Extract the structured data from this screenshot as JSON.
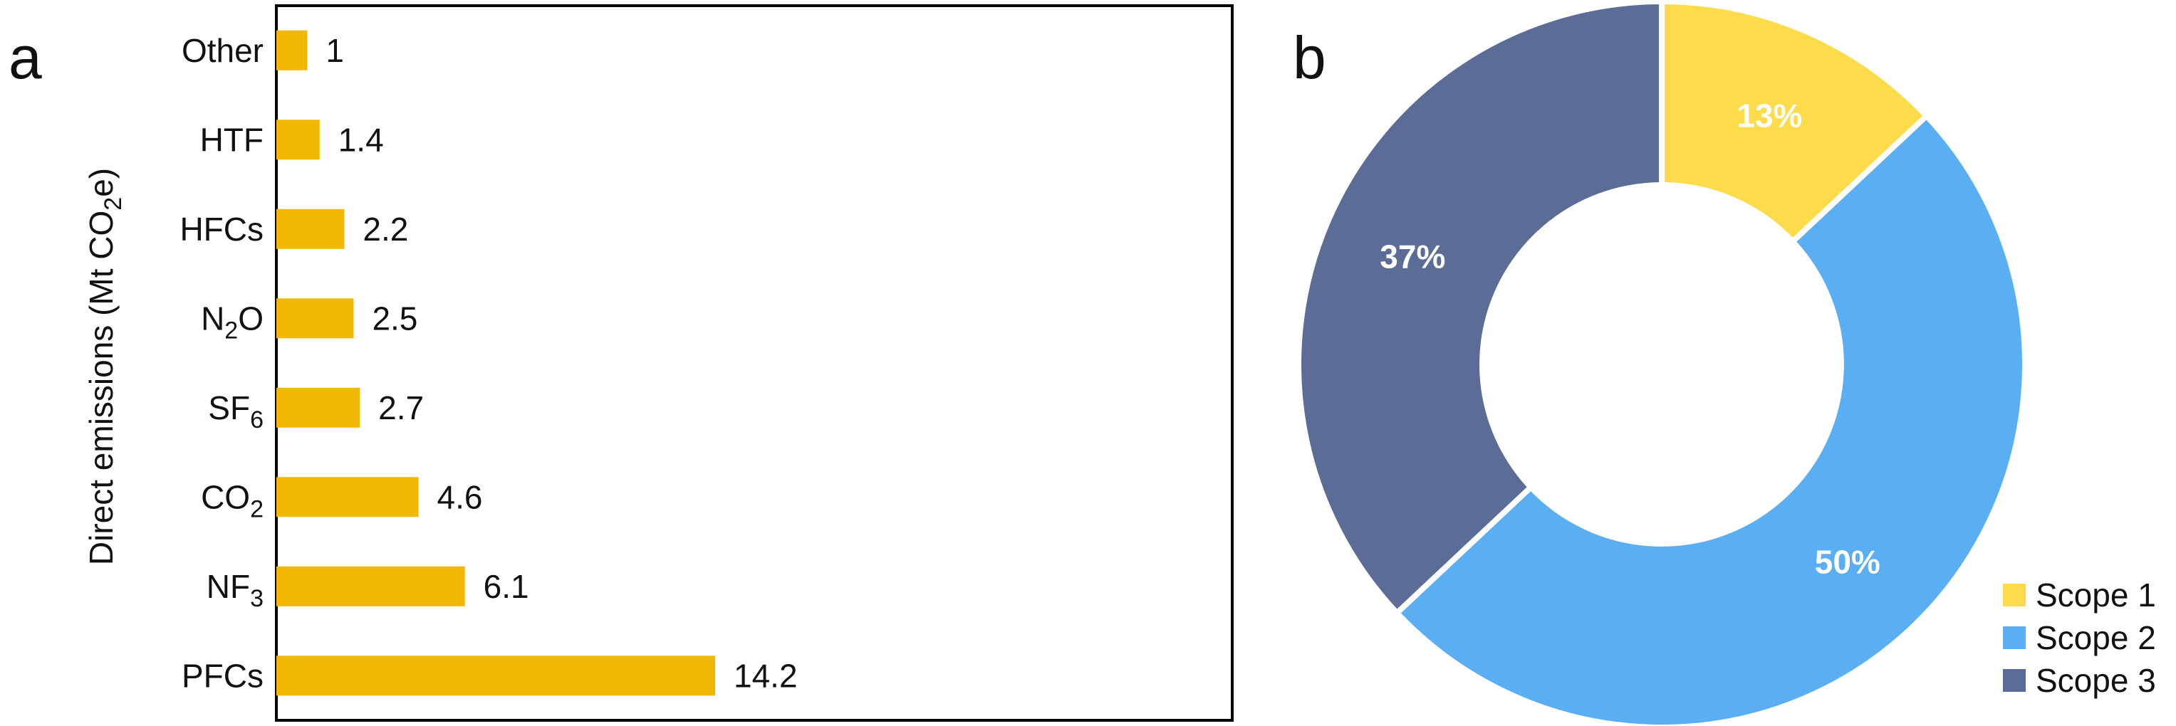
{
  "panel_a_label": "a",
  "panel_b_label": "b",
  "chart_data": [
    {
      "type": "bar",
      "orientation": "horizontal",
      "ylabel": "Direct emissions  (Mt CO2e)",
      "categories": [
        "Other",
        "HTF",
        "HFCs",
        "N2O",
        "SF6",
        "CO2",
        "NF3",
        "PFCs"
      ],
      "values": [
        1,
        1.4,
        2.2,
        2.5,
        2.7,
        4.6,
        6.1,
        14.2
      ],
      "value_labels": [
        "1",
        "1.4",
        "2.2",
        "2.5",
        "2.7",
        "4.6",
        "6.1",
        "14.2"
      ],
      "xlim": [
        0,
        16
      ],
      "bar_color": "#F0B800",
      "grid": false
    },
    {
      "type": "pie",
      "style": "donut",
      "series": [
        {
          "name": "Scope 1",
          "value": 13,
          "label": "13%",
          "color": "#FDDB4A"
        },
        {
          "name": "Scope 2",
          "value": 50,
          "label": "50%",
          "color": "#5AAEF2"
        },
        {
          "name": "Scope 3",
          "value": 37,
          "label": "37%",
          "color": "#5B6D96"
        }
      ],
      "legend_position": "bottom-right"
    }
  ]
}
